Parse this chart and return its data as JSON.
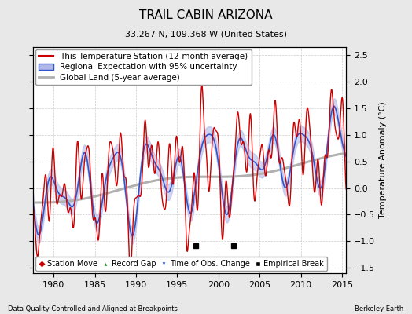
{
  "title": "TRAIL CABIN ARIZONA",
  "subtitle": "33.267 N, 109.368 W (United States)",
  "xlabel_left": "Data Quality Controlled and Aligned at Breakpoints",
  "xlabel_right": "Berkeley Earth",
  "ylabel": "Temperature Anomaly (°C)",
  "xlim": [
    1977.5,
    2015.5
  ],
  "ylim": [
    -1.6,
    2.65
  ],
  "yticks": [
    -1.5,
    -1.0,
    -0.5,
    0.0,
    0.5,
    1.0,
    1.5,
    2.0,
    2.5
  ],
  "xticks": [
    1980,
    1985,
    1990,
    1995,
    2000,
    2005,
    2010,
    2015
  ],
  "empirical_breaks": [
    1997.3,
    2001.8
  ],
  "station_color": "#cc0000",
  "regional_color": "#3355cc",
  "regional_fill": "#b0b8e8",
  "global_color": "#b0b0b0",
  "background_color": "#e8e8e8",
  "plot_bg": "#ffffff",
  "grid_color": "#cccccc",
  "title_fontsize": 11,
  "subtitle_fontsize": 8,
  "axis_fontsize": 8,
  "legend_fontsize": 7.5
}
